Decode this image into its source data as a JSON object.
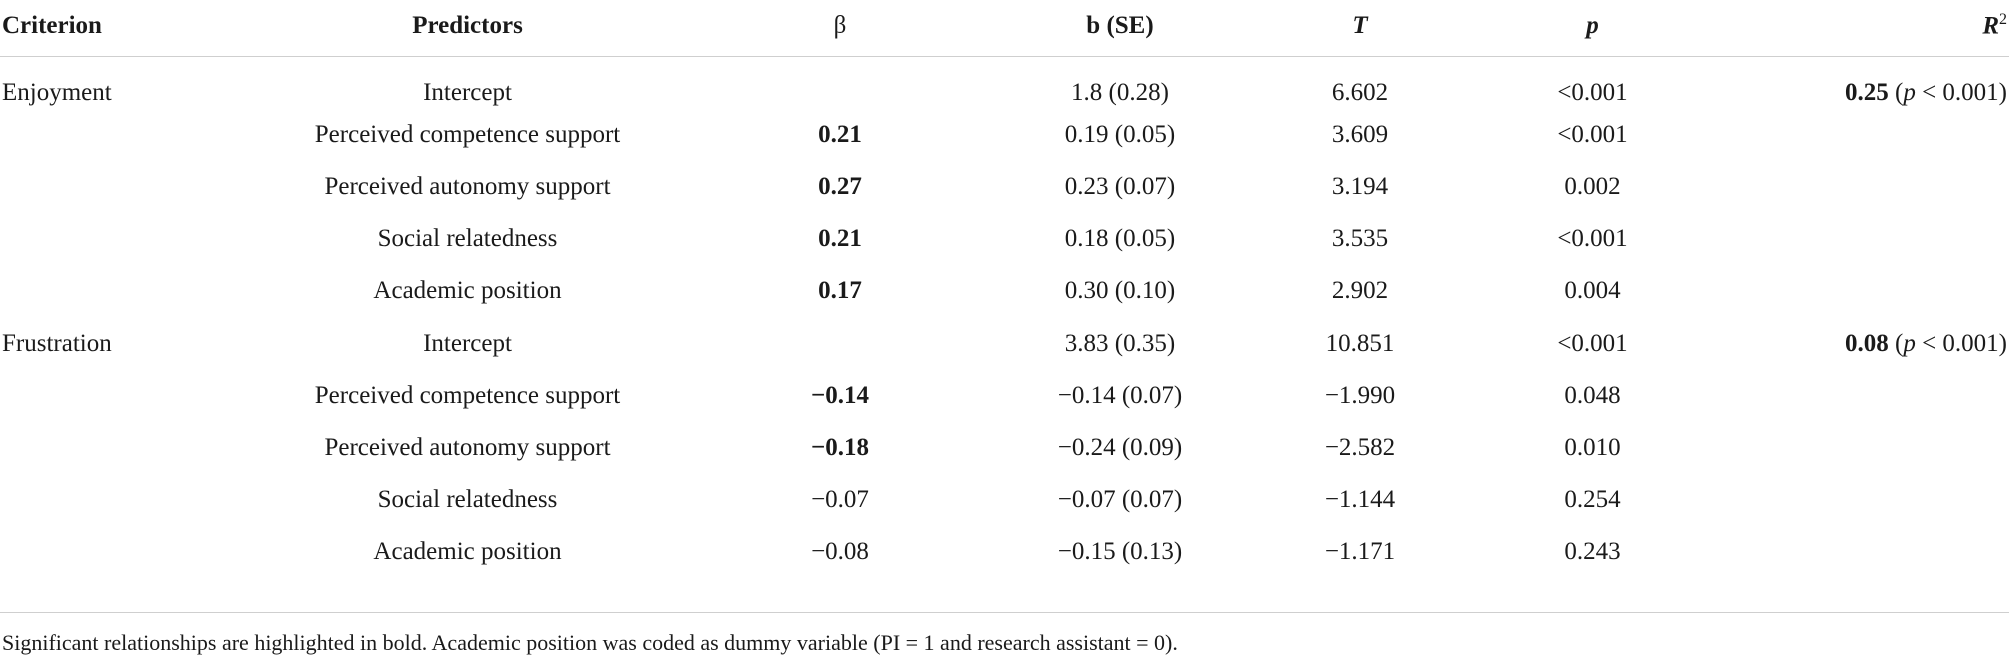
{
  "header": {
    "criterion": "Criterion",
    "predictors": "Predictors",
    "beta": "β",
    "b_se": "b (SE)",
    "t": "T",
    "p": "p",
    "r2_base": "R",
    "r2_sup": "2"
  },
  "rows": [
    {
      "criterion": "Enjoyment",
      "predictor": "Intercept",
      "beta": "",
      "b_se": "1.8 (0.28)",
      "t": "6.602",
      "p": "<0.001",
      "r2_value": "0.25",
      "r2_open": " (",
      "r2_p": "p",
      "r2_rest": " < 0.001)"
    },
    {
      "criterion": "",
      "predictor": "Perceived competence support",
      "beta": "0.21",
      "b_se": "0.19 (0.05)",
      "t": "3.609",
      "p": "<0.001"
    },
    {
      "criterion": "",
      "predictor": "Perceived autonomy support",
      "beta": "0.27",
      "b_se": "0.23 (0.07)",
      "t": "3.194",
      "p": "0.002"
    },
    {
      "criterion": "",
      "predictor": "Social relatedness",
      "beta": "0.21",
      "b_se": "0.18 (0.05)",
      "t": "3.535",
      "p": "<0.001"
    },
    {
      "criterion": "",
      "predictor": "Academic position",
      "beta": "0.17",
      "b_se": "0.30 (0.10)",
      "t": "2.902",
      "p": "0.004"
    },
    {
      "criterion": "Frustration",
      "predictor": "Intercept",
      "beta": "",
      "b_se": "3.83 (0.35)",
      "t": "10.851",
      "p": "<0.001",
      "r2_value": "0.08",
      "r2_open": " (",
      "r2_p": "p",
      "r2_rest": " < 0.001)"
    },
    {
      "criterion": "",
      "predictor": "Perceived competence support",
      "beta": "−0.14",
      "b_se": "−0.14 (0.07)",
      "t": "−1.990",
      "p": "0.048"
    },
    {
      "criterion": "",
      "predictor": "Perceived autonomy support",
      "beta": "−0.18",
      "b_se": "−0.24 (0.09)",
      "t": "−2.582",
      "p": "0.010"
    },
    {
      "criterion": "",
      "predictor": "Social relatedness",
      "beta": "−0.07",
      "b_se": "−0.07 (0.07)",
      "t": "−1.144",
      "p": "0.254"
    },
    {
      "criterion": "",
      "predictor": "Academic position",
      "beta": "−0.08",
      "b_se": "−0.15 (0.13)",
      "t": "−1.171",
      "p": "0.243"
    }
  ],
  "footnote": "Significant relationships are highlighted in bold. Academic position was coded as dummy variable (PI = 1 and research assistant = 0)."
}
